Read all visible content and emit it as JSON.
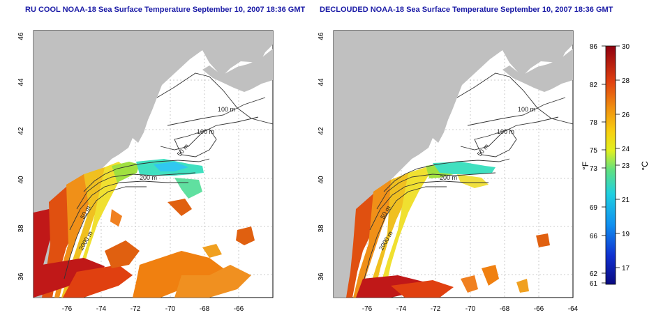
{
  "titles": {
    "left": "RU COOL NOAA-18 Sea Surface Temperature September 10, 2007 18:36 GMT",
    "right": "DECLOUDED NOAA-18 Sea Surface Temperature September 10, 2007 18:36 GMT"
  },
  "axes": {
    "lat_ticks": [
      "46",
      "44",
      "42",
      "40",
      "38",
      "36"
    ],
    "lon_ticks": [
      "-76",
      "-74",
      "-72",
      "-70",
      "-68",
      "-66",
      "-64"
    ]
  },
  "contour_labels": {
    "left": [
      "100 m",
      "100 m",
      "50 m",
      "200 m",
      "50 m",
      "2000 m"
    ],
    "right": [
      "100 m",
      "100 m",
      "50 m",
      "200 m",
      "50 m",
      "2000 m"
    ]
  },
  "colorbar": {
    "fahrenheit_label": "°F",
    "celsius_label": "°C",
    "fahrenheit_ticks": [
      "86",
      "82",
      "78",
      "75",
      "73",
      "69",
      "66",
      "62",
      "61"
    ],
    "celsius_ticks": [
      "30",
      "28",
      "26",
      "24",
      "23",
      "21",
      "19",
      "17"
    ]
  },
  "colors": {
    "title": "#1a1aa6",
    "land": "#c0c0c0",
    "sst_warm": "#c01010",
    "sst_mid": "#f0d020",
    "sst_cool": "#20c0e0",
    "sst_cold": "#10108a"
  }
}
